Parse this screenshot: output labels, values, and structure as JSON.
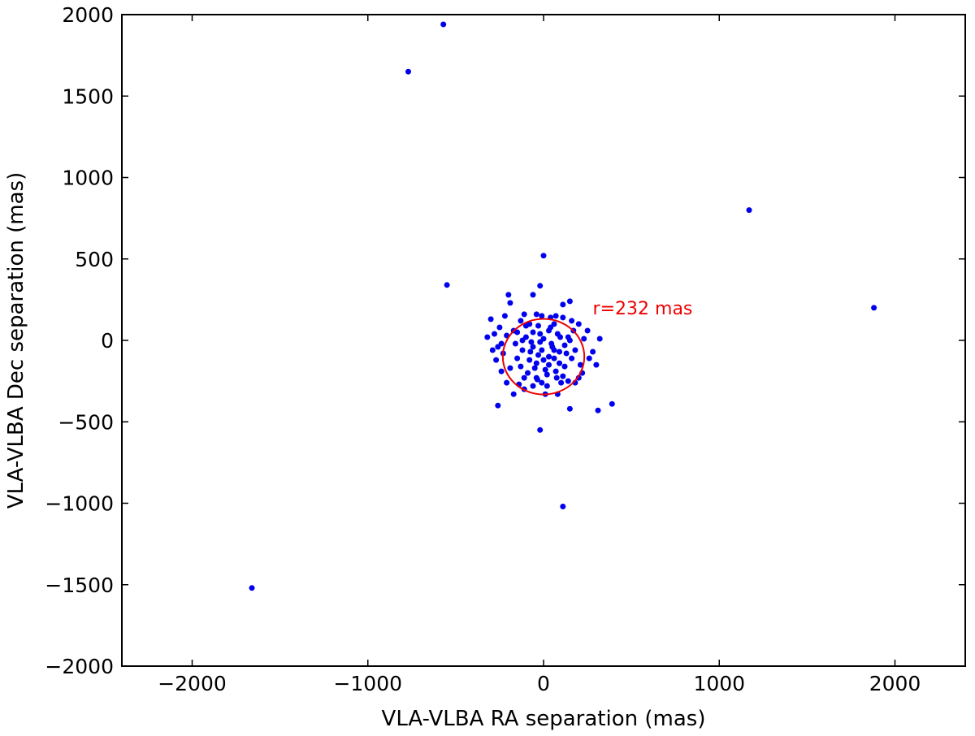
{
  "chart_data": {
    "type": "scatter",
    "xlabel": "VLA-VLBA RA separation (mas)",
    "ylabel": "VLA-VLBA Dec separation (mas)",
    "xlim": [
      -2400,
      2400
    ],
    "ylim": [
      -2000,
      2000
    ],
    "xticks": [
      -2000,
      -1000,
      0,
      1000,
      2000
    ],
    "yticks": [
      -2000,
      -1500,
      -1000,
      -500,
      0,
      500,
      1000,
      1500,
      2000
    ],
    "xtick_labels": [
      "−2000",
      "−1000",
      "0",
      "1000",
      "2000"
    ],
    "ytick_labels": [
      "−2000",
      "−1500",
      "−1000",
      "−500",
      "0",
      "500",
      "1000",
      "1500",
      "2000"
    ],
    "grid": false,
    "colors": {
      "points": "#0000ee",
      "circle": "#ee0000",
      "annotation": "#ee0000"
    },
    "circle": {
      "center": [
        0,
        -100
      ],
      "radius": 232
    },
    "annotation": {
      "text": "r=232 mas",
      "x": 280,
      "y": 160
    },
    "points": [
      [
        -570,
        1940
      ],
      [
        -770,
        1650
      ],
      [
        1170,
        800
      ],
      [
        1880,
        200
      ],
      [
        -1660,
        -1520
      ],
      [
        -550,
        340
      ],
      [
        0,
        520
      ],
      [
        110,
        -1020
      ],
      [
        -20,
        -550
      ],
      [
        -260,
        -400
      ],
      [
        390,
        -390
      ],
      [
        310,
        -430
      ],
      [
        150,
        -420
      ],
      [
        -200,
        280
      ],
      [
        -190,
        230
      ],
      [
        -60,
        280
      ],
      [
        -20,
        335
      ],
      [
        150,
        240
      ],
      [
        110,
        220
      ],
      [
        -300,
        130
      ],
      [
        -220,
        150
      ],
      [
        -110,
        160
      ],
      [
        -80,
        100
      ],
      [
        -170,
        60
      ],
      [
        -10,
        150
      ],
      [
        40,
        140
      ],
      [
        110,
        140
      ],
      [
        200,
        100
      ],
      [
        230,
        10
      ],
      [
        320,
        10
      ],
      [
        280,
        -70
      ],
      [
        300,
        -150
      ],
      [
        220,
        -200
      ],
      [
        180,
        -260
      ],
      [
        140,
        -250
      ],
      [
        110,
        -220
      ],
      [
        80,
        -330
      ],
      [
        -10,
        -260
      ],
      [
        -60,
        -280
      ],
      [
        -110,
        -300
      ],
      [
        -170,
        -330
      ],
      [
        -210,
        -260
      ],
      [
        -240,
        -190
      ],
      [
        -270,
        -120
      ],
      [
        -290,
        -60
      ],
      [
        -240,
        -20
      ],
      [
        -210,
        30
      ],
      [
        -150,
        50
      ],
      [
        -100,
        20
      ],
      [
        -60,
        -40
      ],
      [
        -30,
        -90
      ],
      [
        0,
        -120
      ],
      [
        30,
        -150
      ],
      [
        60,
        -110
      ],
      [
        90,
        -70
      ],
      [
        120,
        -30
      ],
      [
        150,
        0
      ],
      [
        80,
        40
      ],
      [
        30,
        60
      ],
      [
        -20,
        40
      ],
      [
        -70,
        -10
      ],
      [
        -120,
        -60
      ],
      [
        -150,
        -110
      ],
      [
        -130,
        -160
      ],
      [
        -90,
        -200
      ],
      [
        -40,
        -230
      ],
      [
        20,
        -210
      ],
      [
        70,
        -190
      ],
      [
        120,
        -160
      ],
      [
        160,
        -110
      ],
      [
        180,
        -60
      ],
      [
        140,
        20
      ],
      [
        50,
        -40
      ],
      [
        -10,
        -60
      ],
      [
        -40,
        -140
      ],
      [
        10,
        -180
      ],
      [
        60,
        -60
      ],
      [
        -80,
        -120
      ],
      [
        30,
        -100
      ],
      [
        -50,
        -170
      ],
      [
        0,
        10
      ],
      [
        -30,
        90
      ],
      [
        40,
        80
      ],
      [
        90,
        -140
      ],
      [
        -110,
        -230
      ],
      [
        130,
        -80
      ],
      [
        -160,
        -20
      ],
      [
        -190,
        -170
      ],
      [
        100,
        -260
      ],
      [
        -60,
        50
      ],
      [
        20,
        -280
      ],
      [
        -140,
        -270
      ],
      [
        170,
        60
      ],
      [
        60,
        100
      ],
      [
        -100,
        90
      ],
      [
        10,
        -330
      ],
      [
        -20,
        -10
      ],
      [
        45,
        -20
      ],
      [
        -75,
        -70
      ],
      [
        95,
        20
      ],
      [
        -35,
        -240
      ],
      [
        75,
        -230
      ],
      [
        -120,
        0
      ],
      [
        210,
        -150
      ],
      [
        -230,
        -80
      ],
      [
        -320,
        20
      ],
      [
        -280,
        40
      ],
      [
        -260,
        -40
      ],
      [
        -250,
        80
      ],
      [
        250,
        60
      ],
      [
        260,
        -110
      ],
      [
        200,
        -230
      ],
      [
        -130,
        120
      ],
      [
        -40,
        160
      ],
      [
        70,
        150
      ],
      [
        160,
        120
      ]
    ]
  }
}
